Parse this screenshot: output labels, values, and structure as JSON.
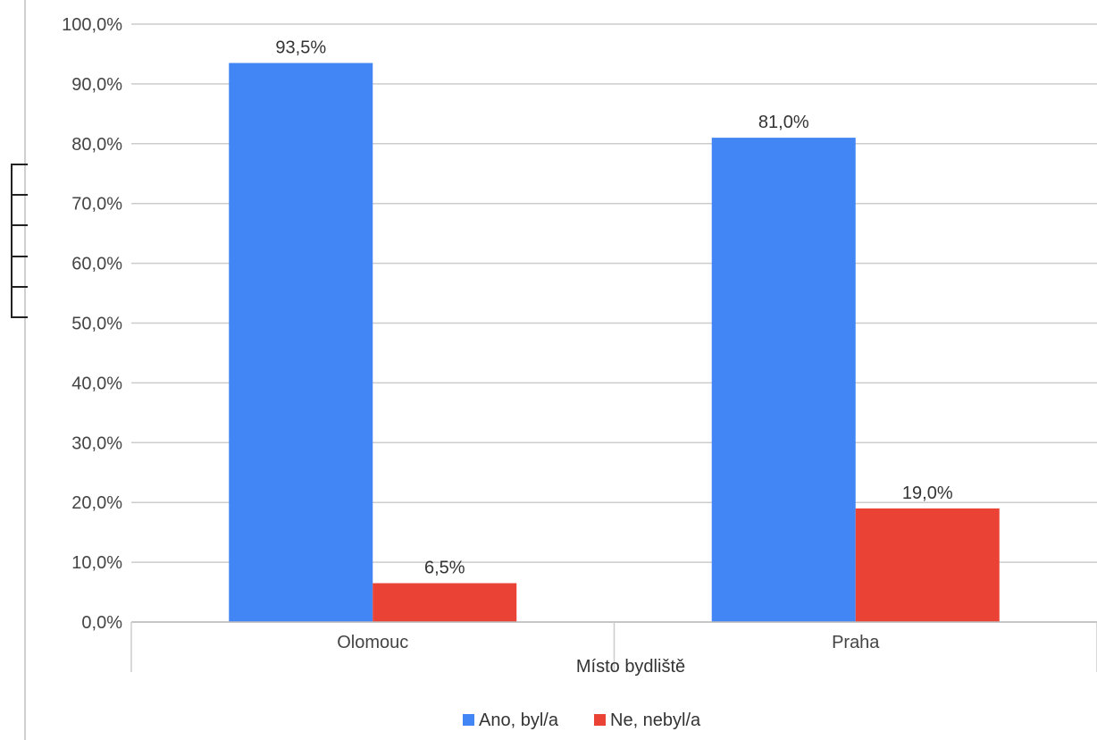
{
  "chart_data": {
    "type": "bar",
    "categories": [
      "Olomouc",
      "Praha"
    ],
    "series": [
      {
        "name": "Ano, byl/a",
        "values": [
          93.5,
          81.0
        ],
        "labels": [
          "93,5%",
          "81,0%"
        ],
        "color": "#4285f4"
      },
      {
        "name": "Ne, nebyl/a",
        "values": [
          6.5,
          19.0
        ],
        "labels": [
          "6,5%",
          "19,0%"
        ],
        "color": "#ea4335"
      }
    ],
    "xlabel": "Místo bydliště",
    "ylabel": "",
    "ylim": [
      0,
      100
    ],
    "yticks": [
      0,
      10,
      20,
      30,
      40,
      50,
      60,
      70,
      80,
      90,
      100
    ],
    "ytick_labels": [
      "0,0%",
      "10,0%",
      "20,0%",
      "30,0%",
      "40,0%",
      "50,0%",
      "60,0%",
      "70,0%",
      "80,0%",
      "90,0%",
      "100,0%"
    ],
    "grid": true,
    "legend_position": "bottom",
    "gridline_color": "#cccccc"
  }
}
